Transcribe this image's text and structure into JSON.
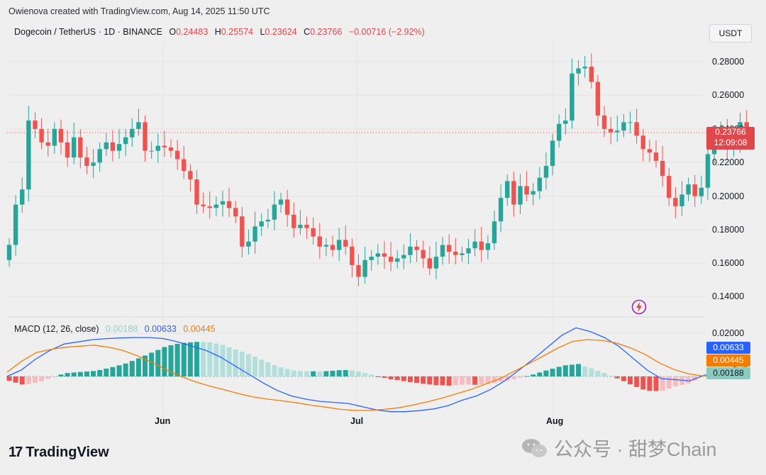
{
  "credit": "Owienova created with TradingView.com, Aug 14, 2025 11:50 UTC",
  "legend": {
    "symbol": "Dogecoin / TetherUS · 1D · BINANCE",
    "o_label": "O",
    "o": "0.24483",
    "h_label": "H",
    "h": "0.25574",
    "l_label": "L",
    "l": "0.23624",
    "c_label": "C",
    "c": "0.23766",
    "change": "−0.00716 (−2.92%)"
  },
  "currency_button": "USDT",
  "price_tag": {
    "price": "0.23766",
    "countdown": "12:09:08"
  },
  "macd_legend": {
    "title": "MACD (12, 26, close)",
    "histogram": "0.00188",
    "macd": "0.00633",
    "signal": "0.00445"
  },
  "macd_tags": {
    "macd": "0.00633",
    "signal": "0.00445",
    "histogram": "0.00188"
  },
  "price_axis_ticks": [
    "0.28000",
    "0.26000",
    "0.24000",
    "0.22000",
    "0.20000",
    "0.18000",
    "0.16000",
    "0.14000"
  ],
  "macd_axis_ticks": [
    "0.02000",
    "0.00000"
  ],
  "x_axis_ticks": [
    "Jun",
    "Jul",
    "Aug"
  ],
  "logo_text": "TradingView",
  "watermark": "公众号 · 甜梦Chain",
  "colors": {
    "up": "#26a69a",
    "down": "#ef5350",
    "macd": "#2962ff",
    "signal": "#f57c00",
    "hist_up_light": "#b2dfdb",
    "hist_down_light": "#f8bbc0"
  },
  "chart_data": {
    "type": "candlestick",
    "title": "Dogecoin / TetherUS · 1D · BINANCE",
    "ylim": [
      0.13,
      0.29
    ],
    "x_ticks": [
      "Jun",
      "Jul",
      "Aug"
    ],
    "closes": [
      0.171,
      0.195,
      0.204,
      0.245,
      0.24,
      0.232,
      0.23,
      0.24,
      0.232,
      0.223,
      0.235,
      0.223,
      0.218,
      0.22,
      0.228,
      0.232,
      0.227,
      0.231,
      0.235,
      0.24,
      0.244,
      0.227,
      0.227,
      0.23,
      0.229,
      0.227,
      0.222,
      0.215,
      0.21,
      0.195,
      0.194,
      0.193,
      0.195,
      0.197,
      0.193,
      0.188,
      0.17,
      0.173,
      0.182,
      0.185,
      0.186,
      0.195,
      0.198,
      0.189,
      0.181,
      0.183,
      0.181,
      0.176,
      0.17,
      0.171,
      0.168,
      0.174,
      0.17,
      0.159,
      0.152,
      0.162,
      0.164,
      0.166,
      0.164,
      0.161,
      0.163,
      0.165,
      0.17,
      0.168,
      0.163,
      0.157,
      0.164,
      0.171,
      0.167,
      0.165,
      0.166,
      0.169,
      0.173,
      0.168,
      0.172,
      0.185,
      0.199,
      0.209,
      0.195,
      0.206,
      0.201,
      0.203,
      0.211,
      0.218,
      0.233,
      0.243,
      0.245,
      0.273,
      0.276,
      0.277,
      0.268,
      0.248,
      0.24,
      0.238,
      0.239,
      0.244,
      0.244,
      0.236,
      0.228,
      0.226,
      0.221,
      0.212,
      0.199,
      0.194,
      0.201,
      0.207,
      0.2,
      0.205,
      0.225,
      0.233,
      0.238,
      0.228,
      0.233,
      0.244,
      0.238
    ],
    "macd": [
      0.0,
      0.003,
      0.008,
      0.012,
      0.015,
      0.016,
      0.017,
      0.0175,
      0.0178,
      0.018,
      0.018,
      0.0175,
      0.016,
      0.014,
      0.012,
      0.009,
      0.005,
      0.001,
      -0.003,
      -0.0065,
      -0.009,
      -0.0105,
      -0.0115,
      -0.012,
      -0.0125,
      -0.014,
      -0.0155,
      -0.0163,
      -0.0163,
      -0.0158,
      -0.015,
      -0.0135,
      -0.011,
      -0.009,
      -0.006,
      -0.002,
      0.003,
      0.008,
      0.0135,
      0.019,
      0.0225,
      0.0208,
      0.018,
      0.014,
      0.0085,
      0.003,
      -0.001,
      -0.0015,
      -0.002,
      0.0005,
      0.002,
      0.004,
      0.0063
    ],
    "signal": [
      0.002,
      0.007,
      0.011,
      0.0125,
      0.0135,
      0.014,
      0.0145,
      0.0135,
      0.012,
      0.0095,
      0.0065,
      0.003,
      0.0,
      -0.0025,
      -0.0045,
      -0.0062,
      -0.008,
      -0.0095,
      -0.0105,
      -0.0113,
      -0.0122,
      -0.0133,
      -0.0142,
      -0.0152,
      -0.0157,
      -0.0157,
      -0.0152,
      -0.0145,
      -0.0132,
      -0.0117,
      -0.01,
      -0.008,
      -0.006,
      -0.0035,
      -0.001,
      0.0025,
      0.006,
      0.0095,
      0.0132,
      0.0162,
      0.017,
      0.0167,
      0.0155,
      0.0132,
      0.0102,
      0.0062,
      0.0032,
      0.0012,
      0.0002,
      0.0015,
      0.0032,
      0.0045
    ]
  }
}
